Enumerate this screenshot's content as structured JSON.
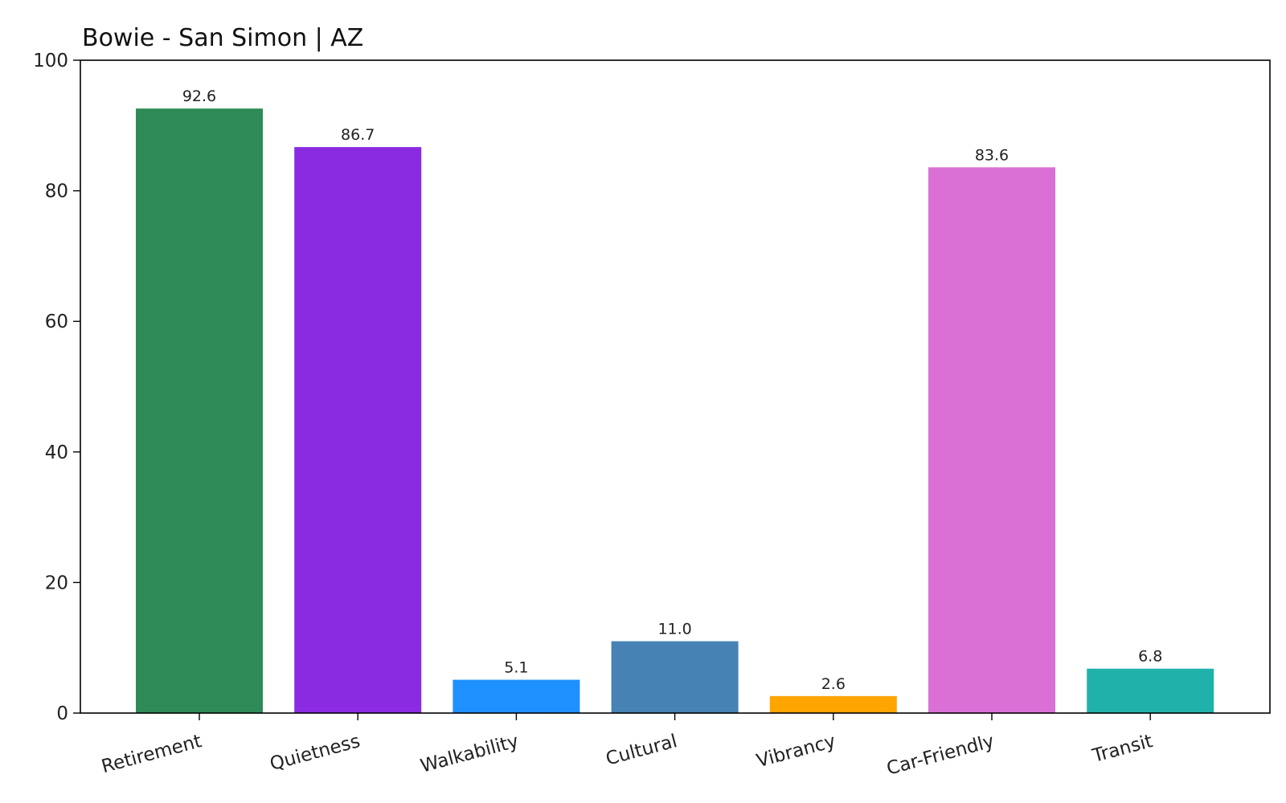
{
  "chart_data": {
    "type": "bar",
    "title": "Bowie - San Simon | AZ",
    "xlabel": "",
    "ylabel": "",
    "categories": [
      "Retirement",
      "Quietness",
      "Walkability",
      "Cultural",
      "Vibrancy",
      "Car-Friendly",
      "Transit"
    ],
    "values": [
      92.6,
      86.7,
      5.1,
      11.0,
      2.6,
      83.6,
      6.8
    ],
    "value_labels": [
      "92.6",
      "86.7",
      "5.1",
      "11.0",
      "2.6",
      "83.6",
      "6.8"
    ],
    "colors": [
      "#2e8b57",
      "#8a2be2",
      "#1e90ff",
      "#4682b4",
      "#ffa500",
      "#da70d6",
      "#20b2aa"
    ],
    "ylim": [
      0,
      100
    ],
    "yticks": [
      0,
      20,
      40,
      60,
      80,
      100
    ],
    "grid": false,
    "legend": false
  }
}
